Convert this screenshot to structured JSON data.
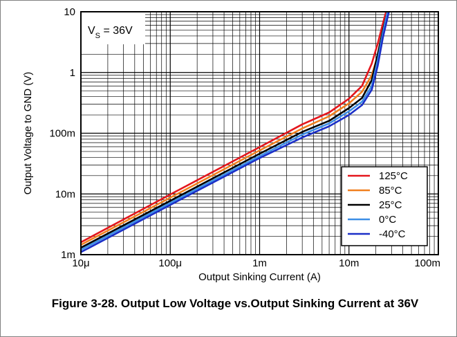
{
  "caption": "Figure 3-28. Output Low Voltage vs.Output Sinking Current at 36V",
  "chart_data": {
    "type": "line",
    "xlabel": "Output Sinking Current (A)",
    "ylabel": "Output Voltage to GND (V)",
    "xscale": "log",
    "yscale": "log",
    "xlim": [
      1e-05,
      0.1
    ],
    "ylim": [
      0.001,
      10
    ],
    "grid": true,
    "legend_position": "bottom-right",
    "annotation": {
      "main": "V",
      "sub": "S",
      "rest": " = 36V"
    },
    "x_ticks": [
      {
        "value": 1e-05,
        "label": "10μ"
      },
      {
        "value": 0.0001,
        "label": "100μ"
      },
      {
        "value": 0.001,
        "label": "1m"
      },
      {
        "value": 0.01,
        "label": "10m"
      },
      {
        "value": 0.1,
        "label": "100m"
      }
    ],
    "y_ticks": [
      {
        "value": 0.001,
        "label": "1m"
      },
      {
        "value": 0.01,
        "label": "10m"
      },
      {
        "value": 0.1,
        "label": "100m"
      },
      {
        "value": 1,
        "label": "1"
      },
      {
        "value": 10,
        "label": "10"
      }
    ],
    "series": [
      {
        "name": "125°C",
        "color": "#e4161c",
        "x": [
          1e-05,
          0.0001,
          0.001,
          0.003,
          0.006,
          0.01,
          0.014,
          0.018,
          0.021,
          0.024,
          0.026
        ],
        "y": [
          0.0016,
          0.0098,
          0.059,
          0.14,
          0.22,
          0.37,
          0.6,
          1.4,
          3,
          6.5,
          10
        ]
      },
      {
        "name": "85°C",
        "color": "#f07f1e",
        "x": [
          1e-05,
          0.0001,
          0.001,
          0.003,
          0.006,
          0.01,
          0.014,
          0.018,
          0.022,
          0.025,
          0.027
        ],
        "y": [
          0.00145,
          0.0087,
          0.052,
          0.12,
          0.19,
          0.31,
          0.48,
          0.9,
          2.4,
          5.5,
          10
        ]
      },
      {
        "name": "25°C",
        "color": "#000000",
        "x": [
          1e-05,
          0.0001,
          0.001,
          0.003,
          0.006,
          0.01,
          0.014,
          0.018,
          0.021,
          0.024,
          0.027
        ],
        "y": [
          0.0013,
          0.0077,
          0.046,
          0.105,
          0.16,
          0.26,
          0.38,
          0.75,
          2,
          5,
          10
        ]
      },
      {
        "name": "0°C",
        "color": "#3c8ee6",
        "x": [
          1e-05,
          0.0001,
          0.001,
          0.003,
          0.006,
          0.01,
          0.014,
          0.018,
          0.021,
          0.024,
          0.027
        ],
        "y": [
          0.0012,
          0.0071,
          0.042,
          0.095,
          0.145,
          0.23,
          0.33,
          0.6,
          1.6,
          4.5,
          10
        ]
      },
      {
        "name": "-40°C",
        "color": "#1b2fc8",
        "x": [
          1e-05,
          0.0001,
          0.001,
          0.003,
          0.006,
          0.01,
          0.014,
          0.018,
          0.021,
          0.024,
          0.028
        ],
        "y": [
          0.0011,
          0.0066,
          0.039,
          0.085,
          0.13,
          0.2,
          0.29,
          0.52,
          1.3,
          3.8,
          10
        ]
      }
    ]
  }
}
